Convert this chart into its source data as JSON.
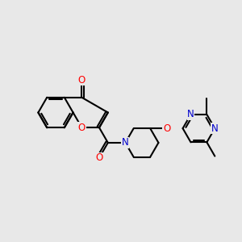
{
  "bg_color": "#e8e8e8",
  "bond_color": "#000000",
  "bond_width": 1.5,
  "atom_colors": {
    "O": "#ff0000",
    "N": "#0000cc",
    "C": "#000000"
  },
  "font_size": 8.5,
  "fig_size": [
    3.0,
    3.0
  ],
  "dpi": 100
}
